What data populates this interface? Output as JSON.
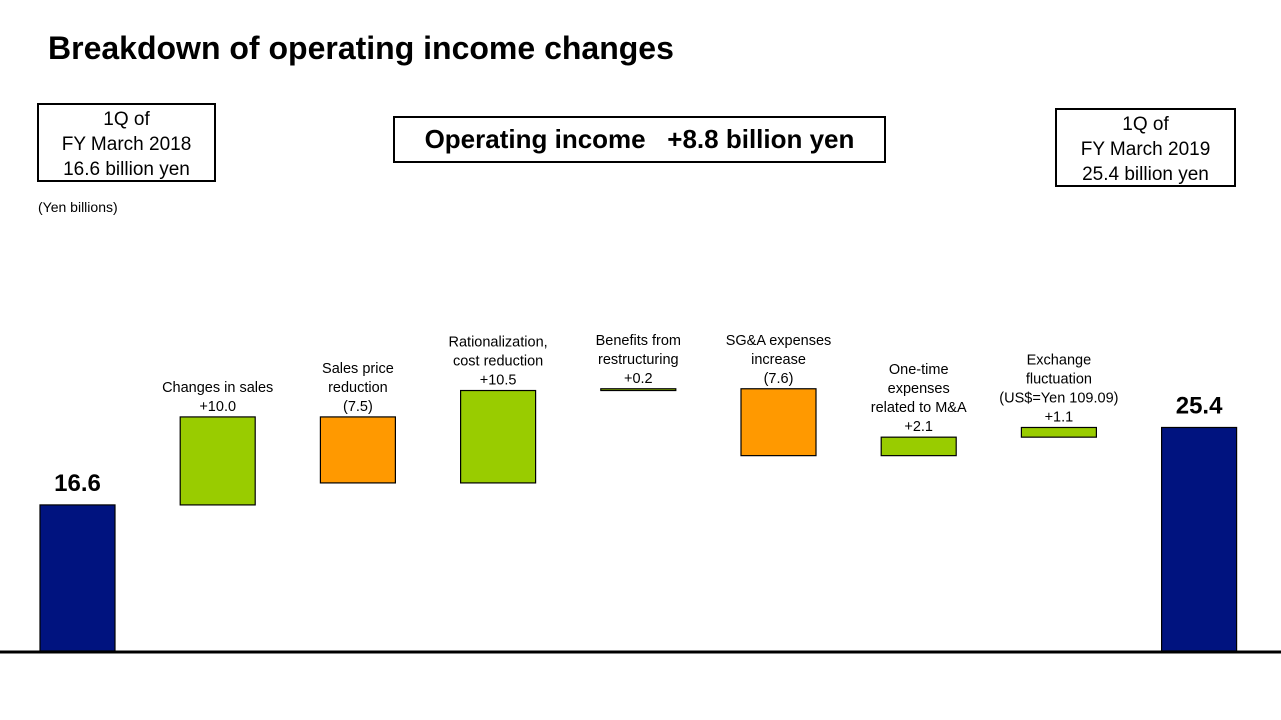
{
  "title": "Breakdown of operating income changes",
  "start_box": [
    "1Q of",
    "FY March 2018",
    "16.6 billion  yen"
  ],
  "end_box": [
    "1Q of",
    "FY March 2019",
    "25.4 billion  yen"
  ],
  "headline": "Operating income   +8.8 billion yen",
  "unit_label": "(Yen billions)",
  "colors": {
    "total": "#00137F",
    "increase": "#99CC00",
    "decrease": "#FF9900",
    "axis": "#000000"
  },
  "chart_data": {
    "type": "bar",
    "subtype": "waterfall",
    "ylim": [
      0,
      26.5
    ],
    "steps": [
      {
        "kind": "total",
        "value": 16.6,
        "labels": [],
        "value_label": "16.6"
      },
      {
        "kind": "increase",
        "value": 10.0,
        "labels": [
          "Changes in sales",
          "+10.0"
        ]
      },
      {
        "kind": "decrease",
        "value": -7.5,
        "labels": [
          "Sales price",
          "reduction",
          "(7.5)"
        ]
      },
      {
        "kind": "increase",
        "value": 10.5,
        "labels": [
          "Rationalization,",
          "cost reduction",
          "+10.5"
        ]
      },
      {
        "kind": "increase",
        "value": 0.2,
        "labels": [
          "Benefits from",
          "restructuring",
          "+0.2"
        ]
      },
      {
        "kind": "decrease",
        "value": -7.6,
        "labels": [
          "SG&A expenses",
          "increase",
          "(7.6)"
        ]
      },
      {
        "kind": "increase",
        "value": 2.1,
        "labels": [
          "One-time",
          "expenses",
          "related to M&A",
          "+2.1"
        ]
      },
      {
        "kind": "increase",
        "value": 1.1,
        "labels": [
          "Exchange",
          "fluctuation",
          "(US$=Yen  109.09)",
          "+1.1"
        ]
      },
      {
        "kind": "total",
        "value": 25.4,
        "labels": [],
        "value_label": "25.4"
      }
    ]
  }
}
